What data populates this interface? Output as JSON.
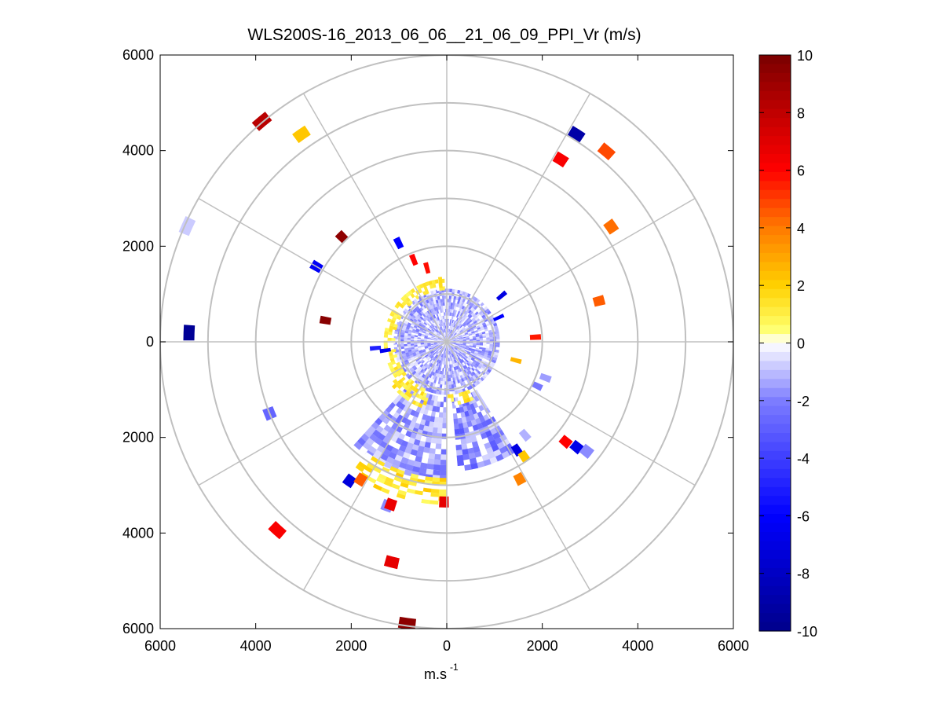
{
  "chart_data": {
    "type": "polar-ppi",
    "title": "WLS200S-16_2013_06_06__21_06_09_PPI_Vr (m/s)",
    "xlabel": "m.s",
    "xlabel_sup": "-1",
    "x_ticks": [
      "6000",
      "4000",
      "2000",
      "0",
      "2000",
      "4000",
      "6000"
    ],
    "y_ticks": [
      "6000",
      "4000",
      "2000",
      "0",
      "2000",
      "4000",
      "6000"
    ],
    "axis_range": [
      -6000,
      6000
    ],
    "range_rings_m": [
      1000,
      2000,
      3000,
      4000,
      5000,
      6000
    ],
    "spokes_deg": [
      0,
      30,
      60,
      90,
      120,
      150,
      180,
      210,
      240,
      270,
      300,
      330
    ],
    "colorbar": {
      "label_values": [
        10,
        8,
        6,
        4,
        2,
        0,
        -2,
        -4,
        -6,
        -8,
        -10
      ],
      "labels": [
        "10",
        "8",
        "6",
        "4",
        "2",
        "0",
        "-2",
        "-4",
        "-6",
        "-8",
        "-10"
      ],
      "range": [
        -10,
        10
      ],
      "n_levels": 64
    },
    "colormap_stops": [
      {
        "v": -10,
        "c": "#00008a"
      },
      {
        "v": -6,
        "c": "#0000ff"
      },
      {
        "v": -2,
        "c": "#7d7dff"
      },
      {
        "v": 0,
        "c": "#ffffff"
      },
      {
        "v": 0.5,
        "c": "#ffff6a"
      },
      {
        "v": 2,
        "c": "#ffd000"
      },
      {
        "v": 4,
        "c": "#ff7a00"
      },
      {
        "v": 6,
        "c": "#ff0000"
      },
      {
        "v": 8,
        "c": "#c00000"
      },
      {
        "v": 10,
        "c": "#7a0000"
      }
    ],
    "gate_span_m": 230,
    "gate_width_deg": 3.4,
    "inner_field": {
      "r_min": 60,
      "r_max": 1080,
      "value_range": [
        -2.4,
        -0.1
      ]
    },
    "sectors": [
      {
        "az_start": 180,
        "az_end": 222,
        "r_min": 1150,
        "r_max": 2900,
        "value_range": [
          -2.6,
          -0.4
        ]
      },
      {
        "az_start": 148,
        "az_end": 175,
        "r_min": 1180,
        "r_max": 2700,
        "value_range": [
          -3.2,
          -0.3
        ]
      }
    ],
    "yellow_bands": [
      {
        "az_start": 180,
        "az_end": 215,
        "r_min": 2850,
        "r_max": 3400,
        "value_range": [
          0.6,
          2.2
        ]
      },
      {
        "az_start": 232,
        "az_end": 358,
        "r_min": 1080,
        "r_max": 1250,
        "value_range": [
          0.5,
          1.6
        ]
      },
      {
        "az_start": 198,
        "az_end": 232,
        "r_min": 1080,
        "r_max": 1450,
        "value_range": [
          0.5,
          1.8
        ]
      },
      {
        "az_start": 155,
        "az_end": 178,
        "r_min": 1100,
        "r_max": 1300,
        "value_range": [
          0.6,
          2.0
        ]
      }
    ],
    "isolated_gates": [
      {
        "az": 320,
        "r": 6020,
        "v": 8.2
      },
      {
        "az": 325,
        "r": 5300,
        "v": 2.2
      },
      {
        "az": 32,
        "r": 5120,
        "v": -9.0
      },
      {
        "az": 40,
        "r": 5200,
        "v": 4.8
      },
      {
        "az": 32,
        "r": 4500,
        "v": 6.2
      },
      {
        "az": 55,
        "r": 4200,
        "v": 4.2
      },
      {
        "az": 75,
        "r": 3300,
        "v": 4.5
      },
      {
        "az": 294,
        "r": 5950,
        "v": -0.8
      },
      {
        "az": 272,
        "r": 5400,
        "v": -9.6
      },
      {
        "az": 248,
        "r": 4000,
        "v": -2.8
      },
      {
        "az": 300,
        "r": 3150,
        "v": -6.3
      },
      {
        "az": 315,
        "r": 3100,
        "v": 9.4
      },
      {
        "az": 280,
        "r": 2580,
        "v": 9.6
      },
      {
        "az": 334,
        "r": 2300,
        "v": -6.0
      },
      {
        "az": 338,
        "r": 1850,
        "v": 6.0
      },
      {
        "az": 345,
        "r": 1600,
        "v": 5.8
      },
      {
        "az": 50,
        "r": 1500,
        "v": -7.0
      },
      {
        "az": 65,
        "r": 1200,
        "v": -6.0
      },
      {
        "az": 87,
        "r": 1860,
        "v": 5.6
      },
      {
        "az": 105,
        "r": 1500,
        "v": 2.6
      },
      {
        "az": 265,
        "r": 1500,
        "v": -5.0
      },
      {
        "az": 262,
        "r": 1300,
        "v": -6.5
      },
      {
        "az": 130,
        "r": 3250,
        "v": 6.0
      },
      {
        "az": 129,
        "r": 3500,
        "v": -6.8
      },
      {
        "az": 128,
        "r": 3720,
        "v": -1.8
      },
      {
        "az": 147,
        "r": 2700,
        "v": -7.0
      },
      {
        "az": 140,
        "r": 2550,
        "v": -1.2
      },
      {
        "az": 146,
        "r": 2900,
        "v": 2.2
      },
      {
        "az": 152,
        "r": 3250,
        "v": 3.8
      },
      {
        "az": 215,
        "r": 3550,
        "v": -7.2
      },
      {
        "az": 200,
        "r": 3650,
        "v": -1.8
      },
      {
        "az": 212,
        "r": 3400,
        "v": 4.5
      },
      {
        "az": 222,
        "r": 5300,
        "v": 6.2
      },
      {
        "az": 194,
        "r": 4750,
        "v": 6.8
      },
      {
        "az": 188,
        "r": 5950,
        "v": 9.5
      },
      {
        "az": 199,
        "r": 3600,
        "v": 6.6
      },
      {
        "az": 181,
        "r": 3350,
        "v": 6.8
      },
      {
        "az": 110,
        "r": 2200,
        "v": -1.5
      },
      {
        "az": 116,
        "r": 2100,
        "v": -2.2
      },
      {
        "az": 354,
        "r": 1250,
        "v": 1.6
      }
    ]
  }
}
